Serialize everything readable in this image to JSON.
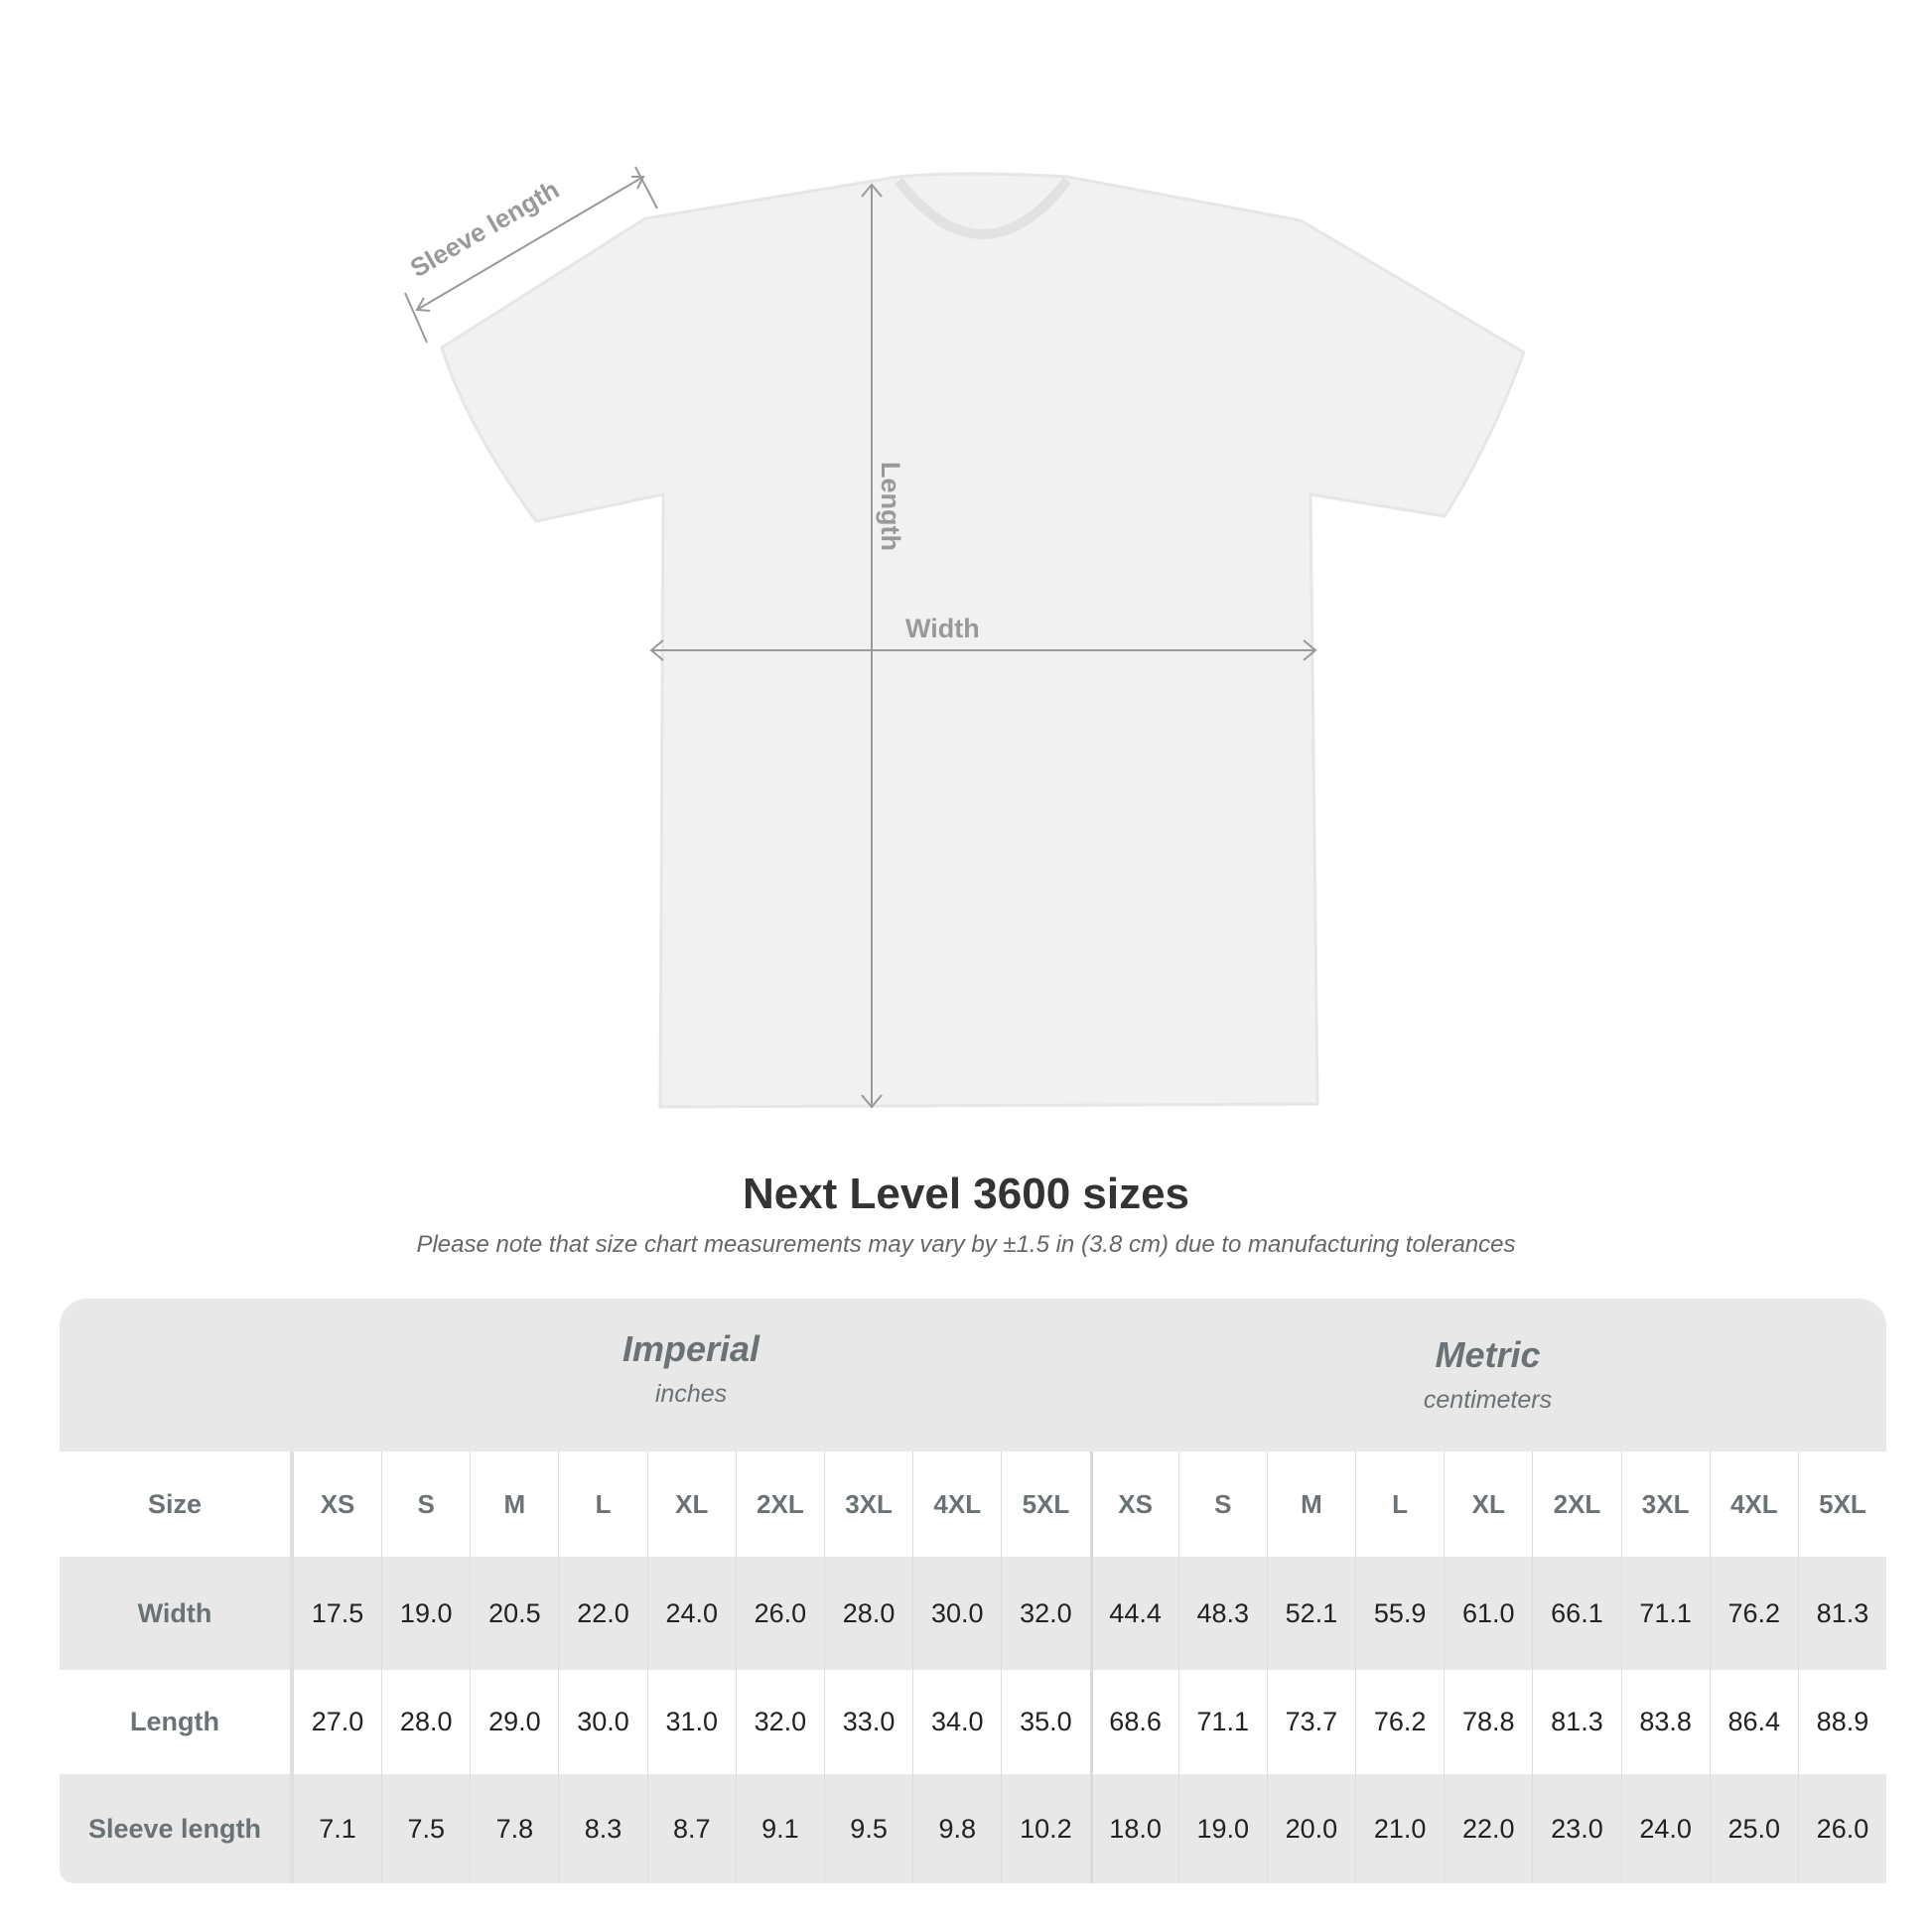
{
  "diagram": {
    "sleeve_label": "Sleeve length",
    "length_label": "Length",
    "width_label": "Width"
  },
  "title": "Next Level 3600 sizes",
  "note": "Please note that size chart measurements may vary by ±1.5 in (3.8 cm) due to manufacturing tolerances",
  "imperial": {
    "name": "Imperial",
    "unit": "inches"
  },
  "metric": {
    "name": "Metric",
    "unit": "centimeters"
  },
  "size_label": "Size",
  "sizes": [
    "XS",
    "S",
    "M",
    "L",
    "XL",
    "2XL",
    "3XL",
    "4XL",
    "5XL"
  ],
  "rows": [
    {
      "label": "Width",
      "imperial": [
        "17.5",
        "19.0",
        "20.5",
        "22.0",
        "24.0",
        "26.0",
        "28.0",
        "30.0",
        "32.0"
      ],
      "metric": [
        "44.4",
        "48.3",
        "52.1",
        "55.9",
        "61.0",
        "66.1",
        "71.1",
        "76.2",
        "81.3"
      ]
    },
    {
      "label": "Length",
      "imperial": [
        "27.0",
        "28.0",
        "29.0",
        "30.0",
        "31.0",
        "32.0",
        "33.0",
        "34.0",
        "35.0"
      ],
      "metric": [
        "68.6",
        "71.1",
        "73.7",
        "76.2",
        "78.8",
        "81.3",
        "83.8",
        "86.4",
        "88.9"
      ]
    },
    {
      "label": "Sleeve length",
      "imperial": [
        "7.1",
        "7.5",
        "7.8",
        "8.3",
        "8.7",
        "9.1",
        "9.5",
        "9.8",
        "10.2"
      ],
      "metric": [
        "18.0",
        "19.0",
        "20.0",
        "21.0",
        "22.0",
        "23.0",
        "24.0",
        "25.0",
        "26.0"
      ]
    }
  ],
  "colors": {
    "header_grey": "#e8e8e8",
    "label_text": "#6b7276",
    "annotation": "#999999"
  }
}
